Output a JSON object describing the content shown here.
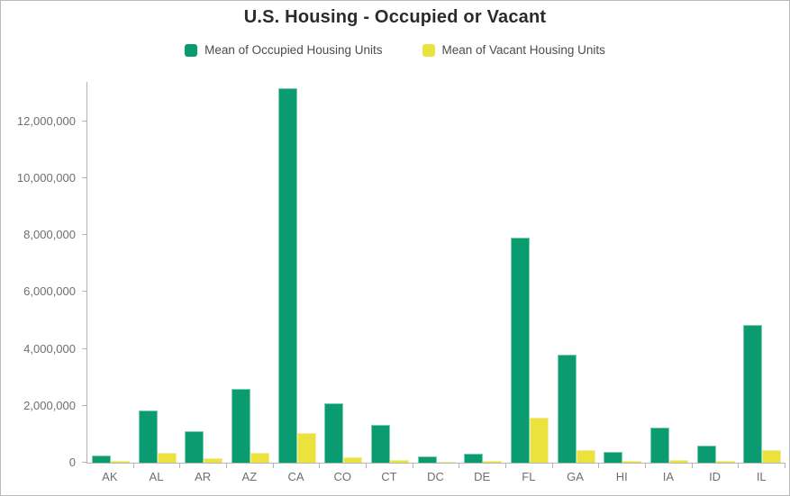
{
  "card": {
    "title": "U.S. Housing - Occupied or Vacant"
  },
  "legend": {
    "items": [
      {
        "label": "Mean of Occupied Housing Units",
        "color": "#0a9b71"
      },
      {
        "label": "Mean of Vacant Housing Units",
        "color": "#ece23e"
      }
    ]
  },
  "chart_data": {
    "type": "bar",
    "title": "U.S. Housing - Occupied or Vacant",
    "categories": [
      "AK",
      "AL",
      "AR",
      "AZ",
      "CA",
      "CO",
      "CT",
      "DC",
      "DE",
      "FL",
      "GA",
      "HI",
      "IA",
      "ID",
      "IL"
    ],
    "series": [
      {
        "name": "Mean of Occupied Housing Units",
        "color": "#0a9b71",
        "border_color": "#7bcfae",
        "values": [
          260000,
          1840000,
          1120000,
          2600000,
          13150000,
          2090000,
          1330000,
          230000,
          330000,
          7920000,
          3790000,
          390000,
          1220000,
          590000,
          4840000
        ]
      },
      {
        "name": "Mean of Vacant Housing Units",
        "color": "#ece23e",
        "border_color": "#f4eda0",
        "values": [
          50000,
          340000,
          160000,
          340000,
          1040000,
          200000,
          90000,
          30000,
          60000,
          1570000,
          440000,
          60000,
          100000,
          70000,
          440000
        ]
      }
    ],
    "ylim": [
      0,
      13380000
    ],
    "y_ticks": [
      {
        "value": 0,
        "label": "0"
      },
      {
        "value": 2000000,
        "label": "2,000,000"
      },
      {
        "value": 4000000,
        "label": "4,000,000"
      },
      {
        "value": 6000000,
        "label": "6,000,000"
      },
      {
        "value": 8000000,
        "label": "8,000,000"
      },
      {
        "value": 10000000,
        "label": "10,000,000"
      },
      {
        "value": 12000000,
        "label": "12,000,000"
      }
    ],
    "grid": false,
    "legend_position": "top",
    "xlabel": "",
    "ylabel": "",
    "axis_color": "#b5b5b5",
    "tick_label_color": "#6e6e6e"
  }
}
